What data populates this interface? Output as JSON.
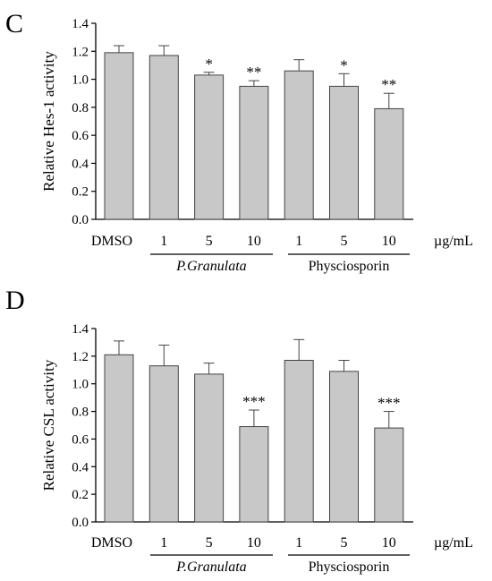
{
  "chart_data": [
    {
      "type": "bar",
      "panel": "C",
      "ylabel": "Relative Hes-1 activity",
      "ylim": [
        0,
        1.4
      ],
      "yticks": [
        "0.0",
        "0.2",
        "0.4",
        "0.6",
        "0.8",
        "1.0",
        "1.2",
        "1.4"
      ],
      "categories": [
        "DMSO",
        "1",
        "5",
        "10",
        "1",
        "5",
        "10"
      ],
      "unit": "µg/mL",
      "groups": [
        {
          "label": "P.Granulata",
          "italic": true,
          "from": 1,
          "to": 3
        },
        {
          "label": "Physciosporin",
          "italic": false,
          "from": 4,
          "to": 6
        }
      ],
      "values": [
        1.19,
        1.17,
        1.03,
        0.95,
        1.06,
        0.95,
        0.79
      ],
      "errors": [
        0.05,
        0.07,
        0.02,
        0.04,
        0.08,
        0.09,
        0.11
      ],
      "significance": [
        "",
        "",
        "*",
        "**",
        "",
        "*",
        "**"
      ],
      "color": "#c8c8c8",
      "grid": false
    },
    {
      "type": "bar",
      "panel": "D",
      "ylabel": "Relative CSL activity",
      "ylim": [
        0,
        1.4
      ],
      "yticks": [
        "0.0",
        "0.2",
        "0.4",
        "0.6",
        "0.8",
        "1.0",
        "1.2",
        "1.4"
      ],
      "categories": [
        "DMSO",
        "1",
        "5",
        "10",
        "1",
        "5",
        "10"
      ],
      "unit": "µg/mL",
      "groups": [
        {
          "label": "P.Granulata",
          "italic": true,
          "from": 1,
          "to": 3
        },
        {
          "label": "Physciosporin",
          "italic": false,
          "from": 4,
          "to": 6
        }
      ],
      "values": [
        1.21,
        1.13,
        1.07,
        0.69,
        1.17,
        1.09,
        0.68
      ],
      "errors": [
        0.1,
        0.15,
        0.08,
        0.12,
        0.15,
        0.08,
        0.12
      ],
      "significance": [
        "",
        "",
        "",
        "***",
        "",
        "",
        "***"
      ],
      "color": "#c8c8c8",
      "grid": false
    }
  ]
}
